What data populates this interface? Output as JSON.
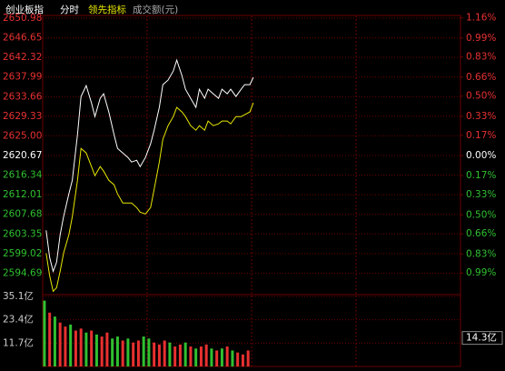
{
  "chart_data": {
    "type": "intraday",
    "mode_label": "分时",
    "volume_label": "成交额(元)",
    "x": [
      2,
      4,
      6,
      8,
      10,
      12,
      15,
      17,
      20,
      22,
      25,
      28,
      30,
      33,
      35,
      38,
      41,
      43,
      46,
      49,
      51,
      54,
      56,
      59,
      62,
      64,
      67,
      69,
      72,
      75,
      77,
      80,
      82,
      85,
      88,
      90,
      93,
      95,
      98,
      101,
      103,
      106,
      108,
      111,
      114,
      116,
      119,
      121
    ],
    "xlim": [
      0,
      240
    ],
    "series": [
      {
        "name": "创业板指",
        "color": "#ffffff",
        "values": [
          2604.15,
          2598.12,
          2595.1,
          2597.11,
          2603.14,
          2607.16,
          2612.19,
          2615.2,
          2625.25,
          2633.69,
          2636.11,
          2632.29,
          2629.27,
          2633.29,
          2634.3,
          2630.28,
          2625.25,
          2622.24,
          2621.23,
          2620.23,
          2619.22,
          2619.62,
          2618.22,
          2620.23,
          2623.24,
          2626.26,
          2631.28,
          2636.31,
          2637.31,
          2639.32,
          2641.73,
          2638.32,
          2635.3,
          2633.29,
          2631.28,
          2635.3,
          2633.29,
          2635.3,
          2634.3,
          2633.29,
          2635.3,
          2634.3,
          2635.3,
          2633.69,
          2635.3,
          2636.31,
          2636.31,
          2637.91
        ]
      },
      {
        "name": "领先指标",
        "color": "#e8e800",
        "values": [
          2599.12,
          2594.1,
          2590.68,
          2591.48,
          2595.1,
          2599.12,
          2603.14,
          2607.16,
          2615.2,
          2622.24,
          2621.23,
          2618.22,
          2616.21,
          2618.22,
          2617.21,
          2615.2,
          2614.2,
          2612.19,
          2610.18,
          2610.18,
          2610.18,
          2609.17,
          2608.17,
          2607.76,
          2609.17,
          2613.19,
          2619.22,
          2624.25,
          2627.26,
          2629.27,
          2631.28,
          2630.28,
          2629.27,
          2627.26,
          2626.26,
          2627.26,
          2626.26,
          2628.27,
          2627.26,
          2627.66,
          2628.27,
          2628.27,
          2627.66,
          2629.27,
          2629.27,
          2629.67,
          2630.28,
          2632.29
        ]
      }
    ],
    "ylim": [
      2590.36,
      2650.98
    ],
    "yticks": [
      2650.98,
      2646.65,
      2642.32,
      2637.99,
      2633.66,
      2629.33,
      {
        "value": 2625.0,
        "label": "2625.00"
      },
      2620.67,
      2616.34,
      2612.01,
      2607.68,
      2603.35,
      2599.02,
      2594.69
    ],
    "y2lim": [
      -1.157,
      1.157
    ],
    "y2ticks": [
      {
        "value": 1.16,
        "label": "1.16%"
      },
      {
        "value": 0.99,
        "label": "0.99%"
      },
      {
        "value": 0.83,
        "label": "0.83%"
      },
      {
        "value": 0.66,
        "label": "0.66%"
      },
      {
        "value": 0.5,
        "label": "0.50%"
      },
      {
        "value": 0.33,
        "label": "0.33%"
      },
      {
        "value": 0.17,
        "label": "0.17%"
      },
      {
        "value": 0,
        "label": "0.00%"
      },
      {
        "value": -0.17,
        "label": "0.17%"
      },
      {
        "value": -0.33,
        "label": "0.33%"
      },
      {
        "value": -0.5,
        "label": "0.50%"
      },
      {
        "value": -0.66,
        "label": "0.66%"
      },
      {
        "value": -0.83,
        "label": "0.83%"
      },
      {
        "value": -0.99,
        "label": "0.99%"
      }
    ],
    "up_color": "#e83030",
    "down_color": "#30c030",
    "flat_color": "#ffffff",
    "grid_color": "#6a0000",
    "volume": {
      "x": [
        1,
        4,
        7,
        10,
        13,
        16,
        19,
        22,
        25,
        28,
        31,
        34,
        37,
        40,
        43,
        46,
        49,
        52,
        55,
        58,
        61,
        64,
        67,
        70,
        73,
        76,
        79,
        82,
        85,
        88,
        91,
        94,
        97,
        100,
        103,
        106,
        109,
        112,
        115,
        118
      ],
      "values": [
        33,
        27,
        25,
        22,
        20,
        21,
        18,
        19,
        17,
        18,
        16,
        15,
        17,
        14,
        15,
        13,
        14,
        12,
        13,
        15,
        14,
        12,
        11,
        13,
        12,
        10,
        11,
        12,
        10,
        9,
        10,
        11,
        9,
        8,
        9,
        10,
        8,
        7,
        6,
        8
      ],
      "up": [
        false,
        true,
        false,
        true,
        true,
        false,
        true,
        true,
        false,
        true,
        false,
        true,
        true,
        false,
        false,
        true,
        false,
        true,
        true,
        false,
        false,
        true,
        true,
        true,
        false,
        true,
        true,
        false,
        true,
        false,
        true,
        true,
        false,
        true,
        false,
        true,
        false,
        true,
        true,
        true
      ],
      "ylim": [
        0,
        35.1
      ],
      "yticks": [
        {
          "value": 35.1,
          "label": "35.1亿"
        },
        {
          "value": 23.4,
          "label": "23.4亿"
        },
        {
          "value": 11.7,
          "label": "11.7亿"
        }
      ],
      "current": {
        "value": 14.3,
        "label": "14.3亿"
      }
    }
  }
}
